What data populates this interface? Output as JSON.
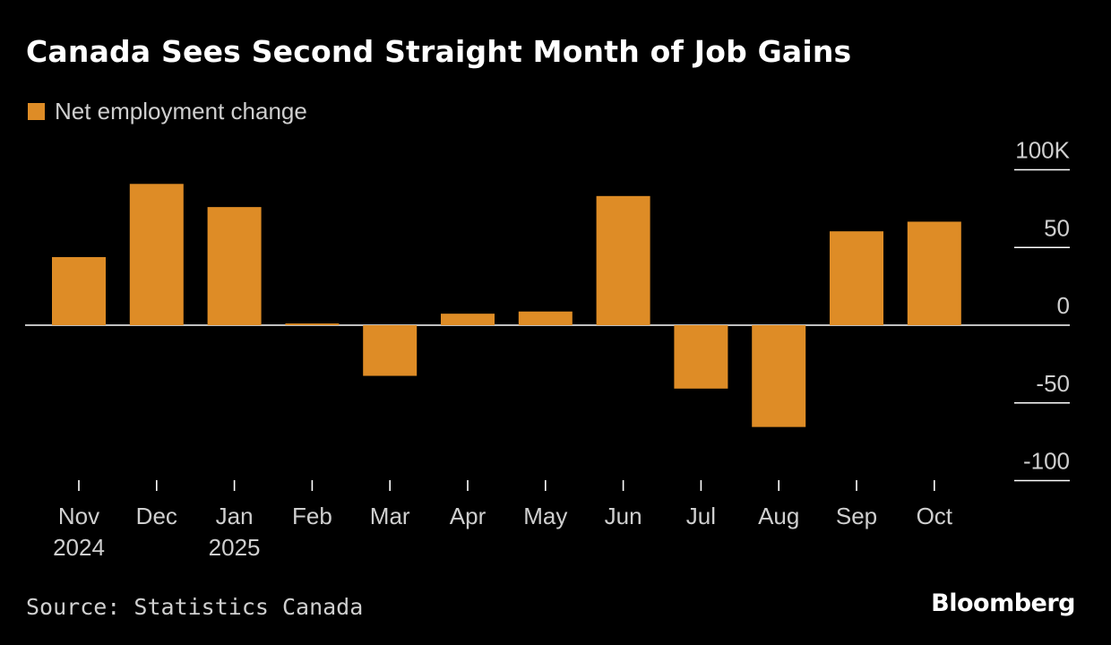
{
  "header": {
    "title": "Canada Sees Second Straight Month of Job Gains"
  },
  "legend": {
    "label": "Net employment change"
  },
  "footer": {
    "source": "Source: Statistics Canada",
    "brand": "Bloomberg"
  },
  "colors": {
    "background": "#000000",
    "bar": "#de8c26",
    "gridline": "#ffffff",
    "text": "#cfcfcf"
  },
  "chart_data": {
    "type": "bar",
    "title": "Canada Sees Second Straight Month of Job Gains",
    "xlabel": "",
    "ylabel": "",
    "grid": true,
    "legend_position": "top-left",
    "y_axis_side": "right",
    "ylim": [
      -100,
      100
    ],
    "y_ticks": [
      100,
      50,
      0,
      -50,
      -100
    ],
    "y_tick_labels": [
      "100K",
      "50",
      "0",
      "-50",
      "-100"
    ],
    "categories": [
      "Nov",
      "Dec",
      "Jan",
      "Feb",
      "Mar",
      "Apr",
      "May",
      "Jun",
      "Jul",
      "Aug",
      "Sep",
      "Oct"
    ],
    "year_labels": [
      "2024",
      "",
      "2025",
      "",
      "",
      "",
      "",
      "",
      "",
      "",
      "",
      ""
    ],
    "series": [
      {
        "name": "Net employment change",
        "values": [
          43.8,
          90.9,
          76.0,
          1.1,
          -32.6,
          7.4,
          8.8,
          83.1,
          -40.8,
          -65.5,
          60.4,
          66.6
        ]
      }
    ]
  }
}
